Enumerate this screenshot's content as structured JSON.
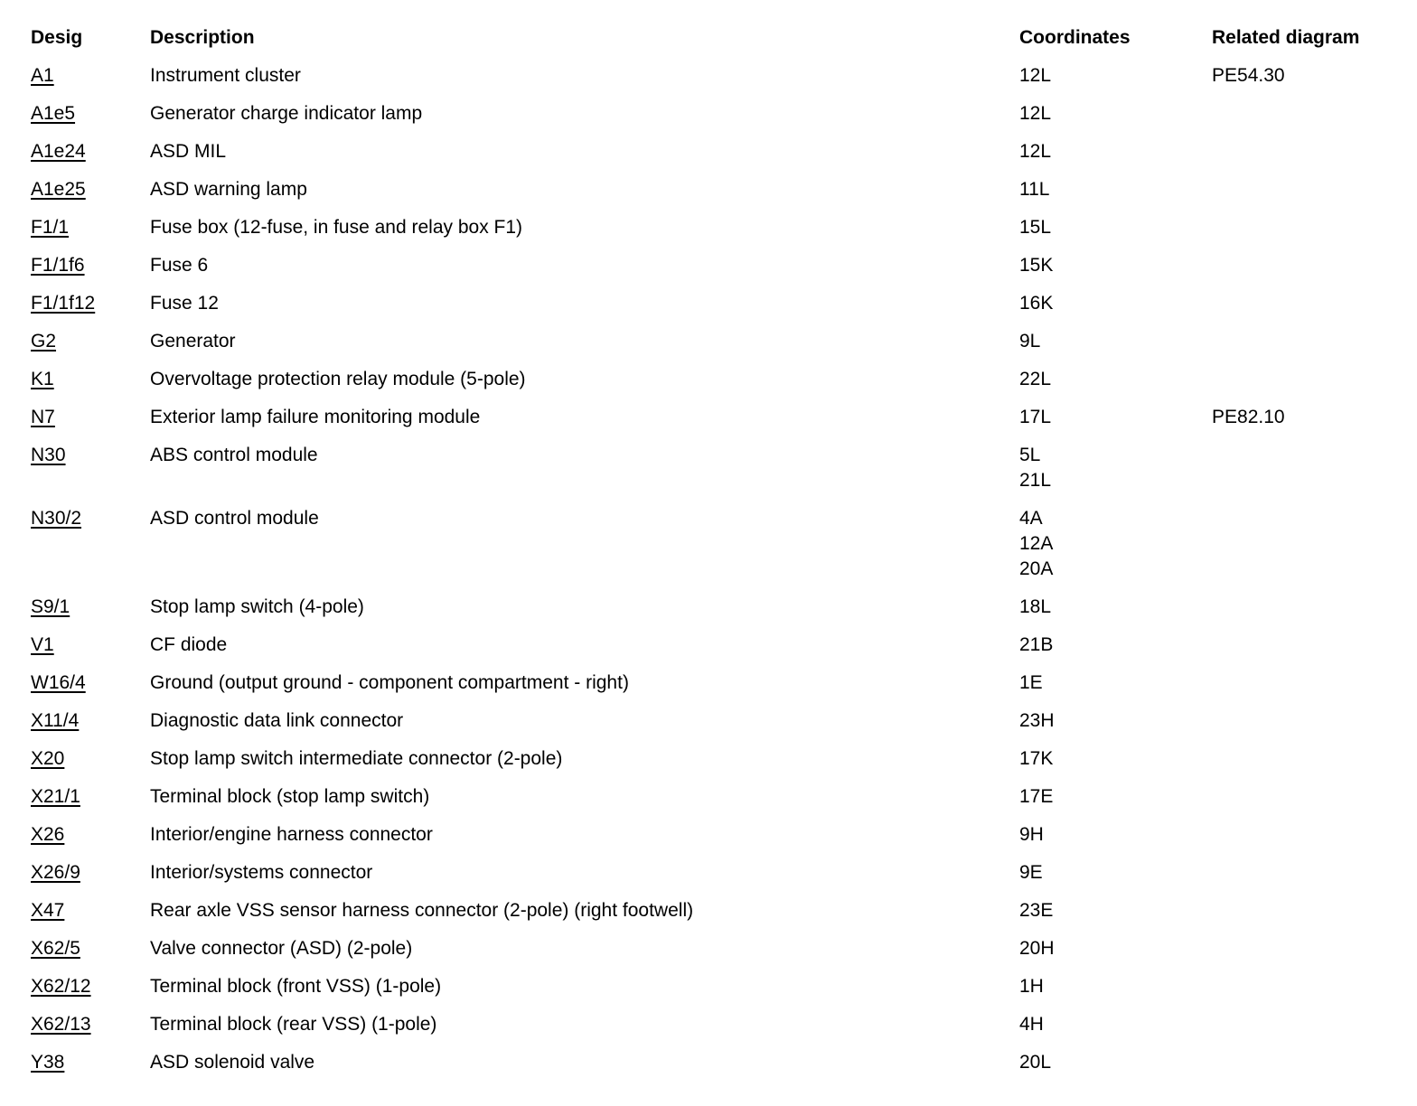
{
  "table": {
    "headers": {
      "desig": "Desig",
      "description": "Description",
      "coordinates": "Coordinates",
      "related": "Related diagram"
    },
    "rows": [
      {
        "desig": "A1",
        "description": "Instrument cluster",
        "coordinates": [
          "12L"
        ],
        "related": "PE54.30"
      },
      {
        "desig": "A1e5",
        "description": "Generator charge indicator lamp",
        "coordinates": [
          "12L"
        ],
        "related": ""
      },
      {
        "desig": "A1e24",
        "description": "ASD MIL",
        "coordinates": [
          "12L"
        ],
        "related": ""
      },
      {
        "desig": "A1e25",
        "description": "ASD warning lamp",
        "coordinates": [
          "11L"
        ],
        "related": ""
      },
      {
        "desig": "F1/1",
        "description": "Fuse box (12-fuse, in fuse and relay box F1)",
        "coordinates": [
          "15L"
        ],
        "related": ""
      },
      {
        "desig": "F1/1f6",
        "description": "Fuse 6",
        "coordinates": [
          "15K"
        ],
        "related": ""
      },
      {
        "desig": "F1/1f12",
        "description": "Fuse 12",
        "coordinates": [
          "16K"
        ],
        "related": ""
      },
      {
        "desig": "G2",
        "description": "Generator",
        "coordinates": [
          "9L"
        ],
        "related": ""
      },
      {
        "desig": "K1",
        "description": "Overvoltage protection relay module (5-pole)",
        "coordinates": [
          "22L"
        ],
        "related": ""
      },
      {
        "desig": "N7",
        "description": "Exterior lamp failure monitoring module",
        "coordinates": [
          "17L"
        ],
        "related": "PE82.10"
      },
      {
        "desig": "N30",
        "description": "ABS control module",
        "coordinates": [
          "5L",
          "21L"
        ],
        "related": ""
      },
      {
        "desig": "N30/2",
        "description": "ASD control module",
        "coordinates": [
          "4A",
          "12A",
          "20A"
        ],
        "related": ""
      },
      {
        "desig": "S9/1",
        "description": "Stop lamp switch (4-pole)",
        "coordinates": [
          "18L"
        ],
        "related": ""
      },
      {
        "desig": "V1",
        "description": "CF diode",
        "coordinates": [
          "21B"
        ],
        "related": ""
      },
      {
        "desig": "W16/4",
        "description": "Ground (output ground - component compartment - right)",
        "coordinates": [
          "1E"
        ],
        "related": ""
      },
      {
        "desig": "X11/4",
        "description": "Diagnostic data link connector",
        "coordinates": [
          "23H"
        ],
        "related": ""
      },
      {
        "desig": "X20",
        "description": "Stop lamp switch intermediate connector (2-pole)",
        "coordinates": [
          "17K"
        ],
        "related": ""
      },
      {
        "desig": "X21/1",
        "description": "Terminal block (stop lamp switch)",
        "coordinates": [
          "17E"
        ],
        "related": ""
      },
      {
        "desig": "X26",
        "description": "Interior/engine harness connector",
        "coordinates": [
          "9H"
        ],
        "related": ""
      },
      {
        "desig": "X26/9",
        "description": "Interior/systems connector",
        "coordinates": [
          "9E"
        ],
        "related": ""
      },
      {
        "desig": "X47",
        "description": "Rear axle VSS sensor harness connector (2-pole) (right footwell)",
        "coordinates": [
          "23E"
        ],
        "related": ""
      },
      {
        "desig": "X62/5",
        "description": "Valve connector (ASD) (2-pole)",
        "coordinates": [
          "20H"
        ],
        "related": ""
      },
      {
        "desig": "X62/12",
        "description": "Terminal block (front VSS) (1-pole)",
        "coordinates": [
          "1H"
        ],
        "related": ""
      },
      {
        "desig": "X62/13",
        "description": "Terminal block (rear VSS) (1-pole)",
        "coordinates": [
          "4H"
        ],
        "related": ""
      },
      {
        "desig": "Y38",
        "description": "ASD solenoid valve",
        "coordinates": [
          "20L"
        ],
        "related": ""
      }
    ]
  }
}
